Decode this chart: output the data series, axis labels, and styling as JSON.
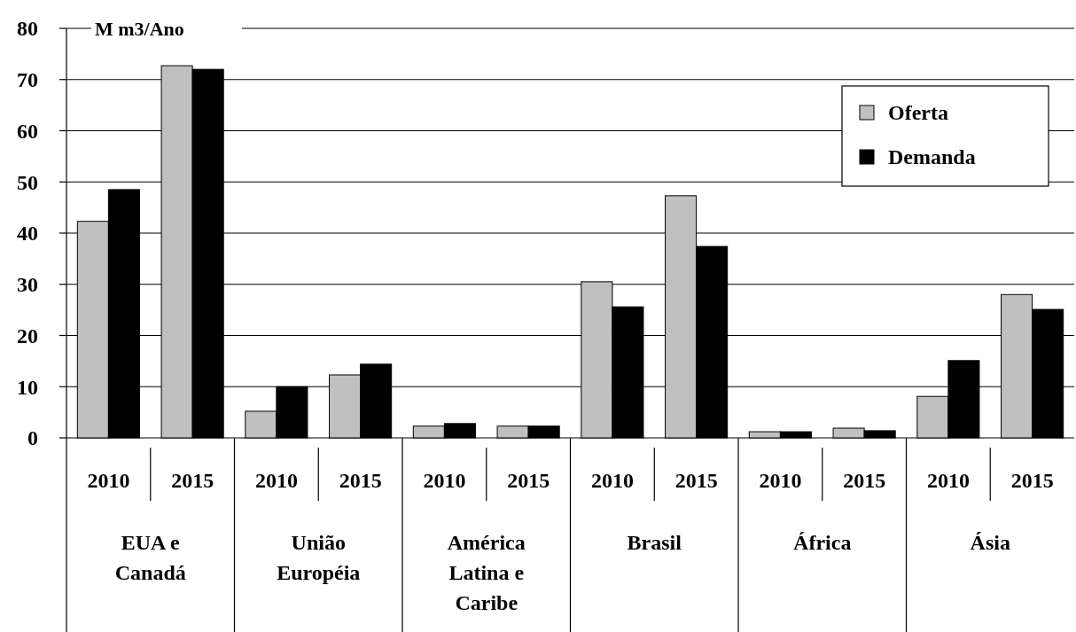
{
  "chart_data": {
    "type": "bar",
    "ylabel": "M m3/Ano",
    "categories": [
      "2010",
      "2015",
      "2010",
      "2015",
      "2010",
      "2015",
      "2010",
      "2015",
      "2010",
      "2015",
      "2010",
      "2015"
    ],
    "series": [
      {
        "name": "Oferta",
        "color": "#c0c0c0",
        "values": [
          42.3,
          72.7,
          5.2,
          12.3,
          2.3,
          2.3,
          30.5,
          47.3,
          1.2,
          1.9,
          8.1,
          28.0
        ]
      },
      {
        "name": "Demanda",
        "color": "#000000",
        "values": [
          48.5,
          72.0,
          10.0,
          14.4,
          2.8,
          2.3,
          25.6,
          37.4,
          1.2,
          1.4,
          15.1,
          25.1
        ]
      }
    ],
    "annotations": [
      "EUA e Canadá",
      "União Européia",
      "América Latina e Caribe",
      "Brasil",
      "África",
      "Ásia"
    ],
    "ylim": [
      0,
      80
    ],
    "yticks": [
      0,
      10,
      20,
      30,
      40,
      50,
      60,
      70,
      80
    ],
    "grid": "y",
    "legend": "top right"
  }
}
